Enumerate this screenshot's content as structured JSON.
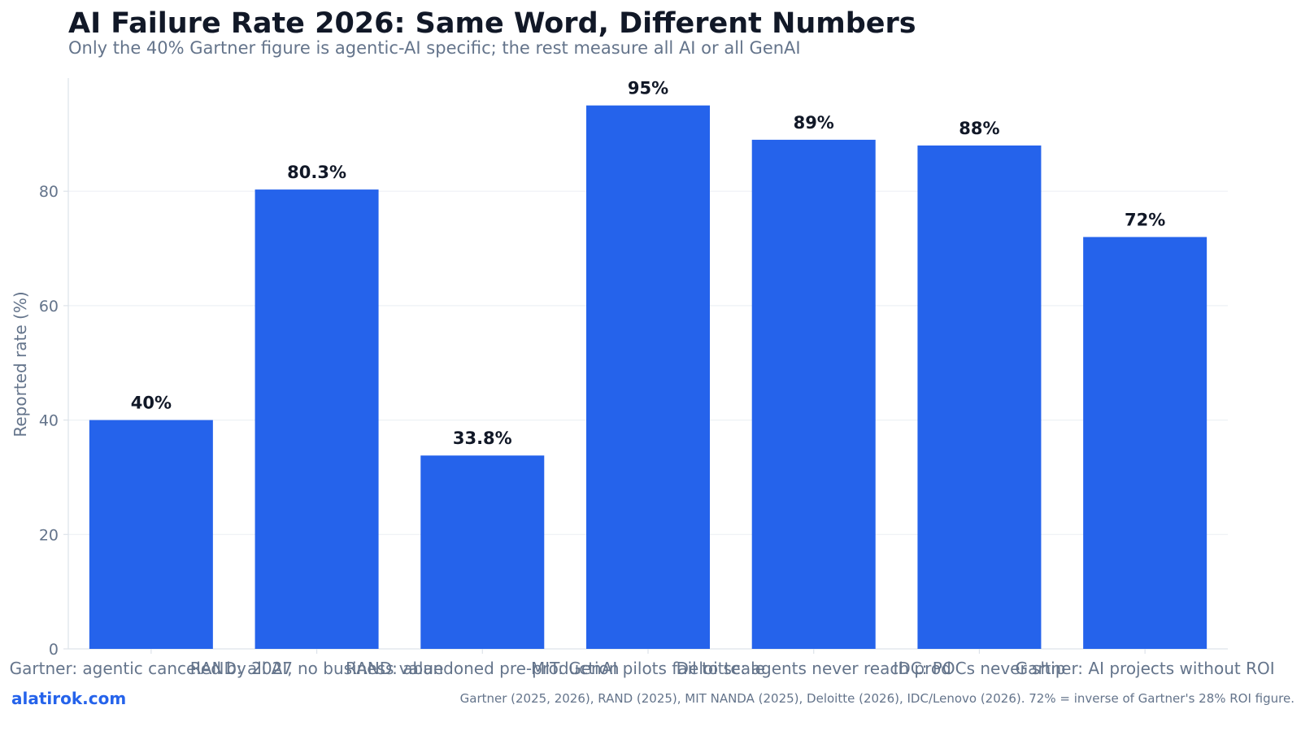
{
  "chart_data": {
    "type": "bar",
    "title": "AI Failure Rate 2026: Same Word, Different Numbers",
    "subtitle": "Only the 40% Gartner figure is agentic-AI specific; the rest measure all AI or all GenAI",
    "xlabel": "",
    "ylabel": "Reported rate (%)",
    "ylim": [
      0,
      100
    ],
    "yticks": [
      0,
      20,
      40,
      60,
      80
    ],
    "grid": true,
    "legend": "none",
    "categories": [
      "Gartner: agentic canceled by 2027",
      "RAND: all AI, no business value",
      "RAND: abandoned pre-production",
      "MIT: GenAI pilots fail to scale",
      "Deloitte: agents never reach prod",
      "IDC: POCs never ship",
      "Gartner: AI projects without ROI"
    ],
    "values": [
      40,
      80.3,
      33.8,
      95,
      89,
      88,
      72
    ],
    "data_labels": [
      "40%",
      "80.3%",
      "33.8%",
      "95%",
      "89%",
      "88%",
      "72%"
    ]
  },
  "footer": {
    "brand": "alatirok.com",
    "source": "Gartner (2025, 2026), RAND (2025), MIT NANDA (2025), Deloitte (2026), IDC/Lenovo (2026). 72% = inverse of Gartner's 28% ROI figure."
  },
  "colors": {
    "bar": "#2563eb",
    "title": "#111827",
    "muted": "#64748b",
    "grid": "#eef1f5",
    "axis": "#dde3ea",
    "brand": "#2563eb"
  }
}
